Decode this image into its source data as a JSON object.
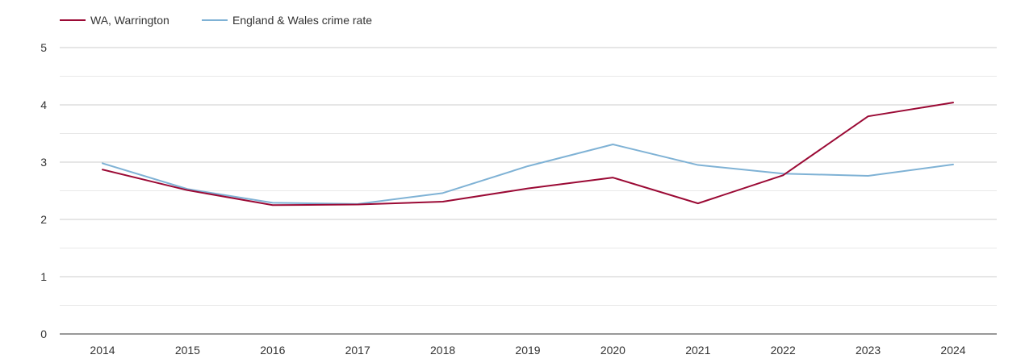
{
  "chart_data": {
    "type": "line",
    "title": "",
    "xlabel": "",
    "ylabel": "",
    "categories": [
      "2014",
      "2015",
      "2016",
      "2017",
      "2018",
      "2019",
      "2020",
      "2021",
      "2022",
      "2023",
      "2024"
    ],
    "ylim": [
      0,
      5
    ],
    "yticks": [
      0,
      1,
      2,
      3,
      4,
      5
    ],
    "grid": true,
    "legend_position": "top-left",
    "series": [
      {
        "name": "WA, Warrington",
        "color": "#9b0a35",
        "values": [
          2.87,
          2.51,
          2.25,
          2.26,
          2.31,
          2.54,
          2.73,
          2.28,
          2.77,
          3.8,
          4.04
        ]
      },
      {
        "name": "England & Wales crime rate",
        "color": "#7fb2d5",
        "values": [
          2.98,
          2.53,
          2.29,
          2.27,
          2.46,
          2.93,
          3.31,
          2.95,
          2.8,
          2.76,
          2.96
        ]
      }
    ]
  }
}
